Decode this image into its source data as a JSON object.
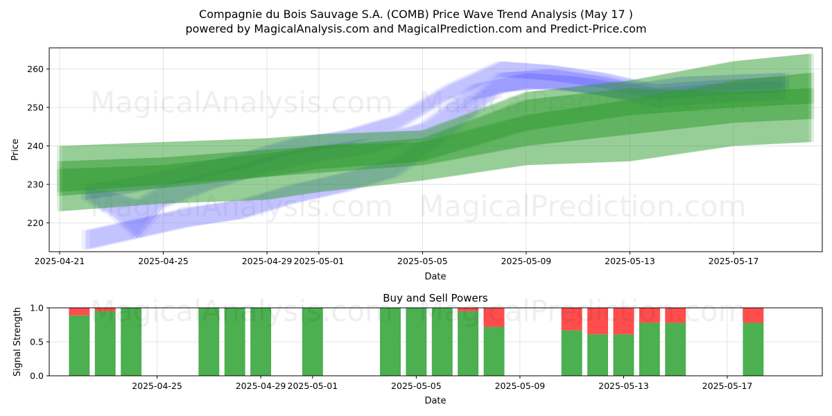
{
  "figure": {
    "title_line1": "Compagnie du Bois Sauvage S.A. (COMB) Price Wave Trend Analysis (May 17 )",
    "title_line2": "powered by MagicalAnalysis.com and MagicalPrediction.com and Predict-Price.com",
    "watermarks": [
      "MagicalAnalysis.com",
      "MagicalPrediction.com"
    ]
  },
  "chart_data": [
    {
      "type": "area",
      "name": "price-wave-trend",
      "xlabel": "Date",
      "ylabel": "Price",
      "ylim": [
        212.5,
        265.5
      ],
      "xlim": [
        "2025-04-20",
        "2025-05-20"
      ],
      "grid": true,
      "x_ticks": [
        "2025-04-21",
        "2025-04-25",
        "2025-04-29",
        "2025-05-01",
        "2025-05-05",
        "2025-05-09",
        "2025-05-13",
        "2025-05-17"
      ],
      "y_ticks": [
        220,
        230,
        240,
        250,
        260
      ],
      "colors": {
        "blue": "#5a5aff",
        "green": "#2e9b2e"
      },
      "blue_bands": [
        {
          "x": [
            "2025-04-22",
            "2025-04-24",
            "2025-04-26",
            "2025-04-28",
            "2025-04-30",
            "2025-05-02",
            "2025-05-04",
            "2025-05-06",
            "2025-05-08",
            "2025-05-10",
            "2025-05-12",
            "2025-05-14",
            "2025-05-16",
            "2025-05-19"
          ],
          "upper": [
            230,
            232,
            235,
            238,
            242,
            244,
            248,
            256,
            262,
            261,
            259,
            256,
            257,
            258
          ],
          "lower": [
            226,
            228,
            231,
            234,
            238,
            240,
            244,
            252,
            258,
            257,
            255,
            252,
            253,
            254
          ]
        },
        {
          "x": [
            "2025-04-22",
            "2025-04-24",
            "2025-04-26",
            "2025-04-28",
            "2025-04-30",
            "2025-05-02",
            "2025-05-04",
            "2025-05-06",
            "2025-05-08",
            "2025-05-10",
            "2025-05-12",
            "2025-05-14",
            "2025-05-16",
            "2025-05-19"
          ],
          "upper": [
            218,
            221,
            224,
            226,
            230,
            233,
            237,
            247,
            259,
            260,
            258,
            255,
            256,
            257
          ],
          "lower": [
            213,
            216,
            219,
            221,
            225,
            228,
            232,
            242,
            254,
            255,
            253,
            250,
            251,
            252
          ]
        },
        {
          "x": [
            "2025-04-22",
            "2025-04-23",
            "2025-04-24",
            "2025-04-25",
            "2025-04-27",
            "2025-04-29",
            "2025-05-01",
            "2025-05-03",
            "2025-05-05",
            "2025-05-07",
            "2025-05-09",
            "2025-05-11",
            "2025-05-13",
            "2025-05-15",
            "2025-05-19"
          ],
          "upper": [
            229,
            228,
            226,
            230,
            233,
            237,
            240,
            242,
            246,
            256,
            259,
            258,
            256,
            258,
            259
          ],
          "lower": [
            226,
            222,
            216,
            224,
            229,
            233,
            236,
            238,
            242,
            252,
            255,
            254,
            252,
            254,
            255
          ]
        }
      ],
      "green_bands": [
        {
          "x": [
            "2025-04-21",
            "2025-04-25",
            "2025-04-29",
            "2025-05-01",
            "2025-05-05",
            "2025-05-09",
            "2025-05-13",
            "2025-05-17",
            "2025-05-20"
          ],
          "upper": [
            240,
            241,
            242,
            243,
            244,
            254,
            257,
            262,
            264
          ],
          "lower": [
            223,
            225,
            226,
            228,
            231,
            235,
            236,
            240,
            241
          ]
        },
        {
          "x": [
            "2025-04-21",
            "2025-04-25",
            "2025-04-29",
            "2025-05-01",
            "2025-05-05",
            "2025-05-09",
            "2025-05-13",
            "2025-05-17",
            "2025-05-20"
          ],
          "upper": [
            236,
            237,
            239,
            240,
            241,
            248,
            252,
            257,
            259
          ],
          "lower": [
            228,
            230,
            232,
            233,
            235,
            240,
            243,
            246,
            247
          ]
        },
        {
          "x": [
            "2025-04-21",
            "2025-04-25",
            "2025-04-29",
            "2025-05-01",
            "2025-05-05",
            "2025-05-09",
            "2025-05-13",
            "2025-05-17",
            "2025-05-20"
          ],
          "upper": [
            234,
            235,
            238,
            240,
            242,
            252,
            255,
            254,
            255
          ],
          "lower": [
            227,
            229,
            232,
            234,
            236,
            244,
            248,
            250,
            251
          ]
        }
      ]
    },
    {
      "type": "bar",
      "name": "buy-and-sell-powers",
      "title": "Buy and Sell Powers",
      "xlabel": "Date",
      "ylabel": "Signal Strength",
      "ylim": [
        0,
        1.0
      ],
      "xlim": [
        "2025-04-20",
        "2025-05-20"
      ],
      "grid": true,
      "x_ticks": [
        "2025-04-25",
        "2025-04-29",
        "2025-05-01",
        "2025-05-05",
        "2025-05-09",
        "2025-05-13",
        "2025-05-17"
      ],
      "y_ticks": [
        "0.0",
        "0.5",
        "1.0"
      ],
      "colors": {
        "buy": "#4caf50",
        "sell": "#ff4d4d"
      },
      "series": [
        {
          "name": "buy",
          "dates": [
            "2025-04-22",
            "2025-04-23",
            "2025-04-24",
            "2025-04-27",
            "2025-04-28",
            "2025-04-29",
            "2025-05-01",
            "2025-05-04",
            "2025-05-05",
            "2025-05-06",
            "2025-05-07",
            "2025-05-08",
            "2025-05-11",
            "2025-05-12",
            "2025-05-13",
            "2025-05-14",
            "2025-05-15",
            "2025-05-18"
          ],
          "values": [
            0.89,
            0.95,
            1.0,
            1.0,
            1.0,
            1.0,
            1.0,
            1.0,
            1.0,
            1.0,
            0.95,
            0.72,
            0.67,
            0.61,
            0.61,
            0.78,
            0.78,
            0.78
          ]
        },
        {
          "name": "sell",
          "dates": [
            "2025-04-22",
            "2025-04-23",
            "2025-04-24",
            "2025-04-27",
            "2025-04-28",
            "2025-04-29",
            "2025-05-01",
            "2025-05-04",
            "2025-05-05",
            "2025-05-06",
            "2025-05-07",
            "2025-05-08",
            "2025-05-11",
            "2025-05-12",
            "2025-05-13",
            "2025-05-14",
            "2025-05-15",
            "2025-05-18"
          ],
          "values": [
            0.11,
            0.05,
            0.0,
            0.0,
            0.0,
            0.0,
            0.0,
            0.0,
            0.0,
            0.0,
            0.05,
            0.28,
            0.33,
            0.39,
            0.39,
            0.22,
            0.22,
            0.22
          ]
        }
      ]
    }
  ]
}
